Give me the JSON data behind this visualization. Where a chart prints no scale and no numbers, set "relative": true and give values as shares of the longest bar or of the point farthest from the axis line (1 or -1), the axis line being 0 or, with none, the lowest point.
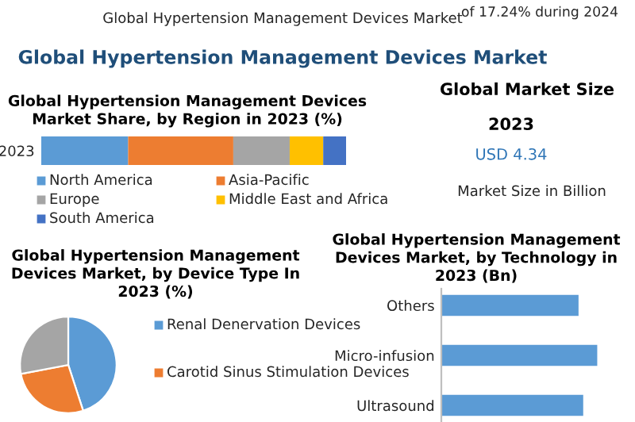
{
  "chart_data": [
    {
      "type": "other",
      "title": "Global Hypertension Management Devices Market",
      "annotations": [
        "Global Hypertension Management Devices Market",
        "of 17.24% during 2024"
      ]
    },
    {
      "type": "bar",
      "title": "Global Hypertension Management Devices Market Share, by Region in 2023 (%)",
      "orientation": "horizontal",
      "stacked": true,
      "relative": true,
      "categories": [
        "2023"
      ],
      "legend": "bottom",
      "series": [
        {
          "name": "North America",
          "color": "#5b9bd5",
          "values": [
            0.285
          ]
        },
        {
          "name": "Asia-Pacific",
          "color": "#ed7d31",
          "values": [
            0.345
          ]
        },
        {
          "name": "Europe",
          "color": "#a5a5a5",
          "values": [
            0.185
          ]
        },
        {
          "name": "Middle East and Africa",
          "color": "#ffc000",
          "values": [
            0.11
          ]
        },
        {
          "name": "South America",
          "color": "#4472c4",
          "values": [
            0.075
          ]
        }
      ]
    },
    {
      "type": "other",
      "title": "Global Market Size",
      "annotations": [
        "2023",
        "USD 4.34",
        "Market Size in Billion"
      ]
    },
    {
      "type": "pie",
      "title": "Global Hypertension Management Devices Market, by Device Type In 2023 (%)",
      "categories": [
        "Renal Denervation Devices",
        "Carotid Sinus Stimulation Devices",
        null
      ],
      "values": [
        45,
        27,
        28
      ],
      "colors": [
        "#5b9bd5",
        "#ed7d31",
        "#a5a5a5"
      ],
      "legend": "right"
    },
    {
      "type": "bar",
      "title": "Global Hypertension Management Devices Market, by Technology in 2023 (Bn)",
      "orientation": "horizontal",
      "relative": true,
      "categories": [
        "Others",
        "Micro-infusion",
        "Ultrasound"
      ],
      "values": [
        0.88,
        1,
        0.91
      ],
      "color": "#5b9bd5"
    }
  ]
}
